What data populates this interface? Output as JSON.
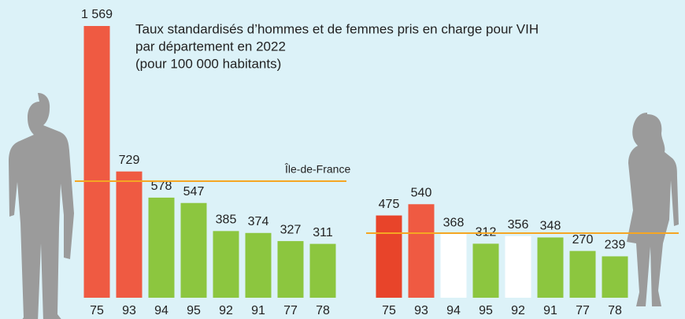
{
  "chart_data": {
    "type": "bar",
    "title": [
      "Taux standardisés d’hommes et de femmes pris en charge pour VIH",
      "par département en 2022",
      "(pour 100 000 habitants)"
    ],
    "groups": [
      {
        "categories": [
          "75",
          "93",
          "94",
          "95",
          "92",
          "91",
          "77",
          "78"
        ],
        "values": [
          1569,
          729,
          578,
          547,
          385,
          374,
          327,
          311
        ],
        "value_labels": [
          "1 569",
          "729",
          "578",
          "547",
          "385",
          "374",
          "327",
          "311"
        ],
        "colors": [
          "#ef5a42",
          "#ef5a42",
          "#8cc63f",
          "#8cc63f",
          "#8cc63f",
          "#8cc63f",
          "#8cc63f",
          "#8cc63f"
        ]
      },
      {
        "categories": [
          "75",
          "93",
          "94",
          "95",
          "92",
          "91",
          "77",
          "78"
        ],
        "values": [
          475,
          540,
          368,
          312,
          356,
          348,
          270,
          239
        ],
        "value_labels": [
          "475",
          "540",
          "368",
          "312",
          "356",
          "348",
          "270",
          "239"
        ],
        "colors": [
          "#e8442a",
          "#ef5a42",
          "#ffffff",
          "#8cc63f",
          "#ffffff",
          "#8cc63f",
          "#8cc63f",
          "#8cc63f"
        ]
      }
    ],
    "reference": {
      "label": "Île-de-France",
      "values": [
        673,
        373
      ],
      "color": "#f5a623"
    }
  }
}
